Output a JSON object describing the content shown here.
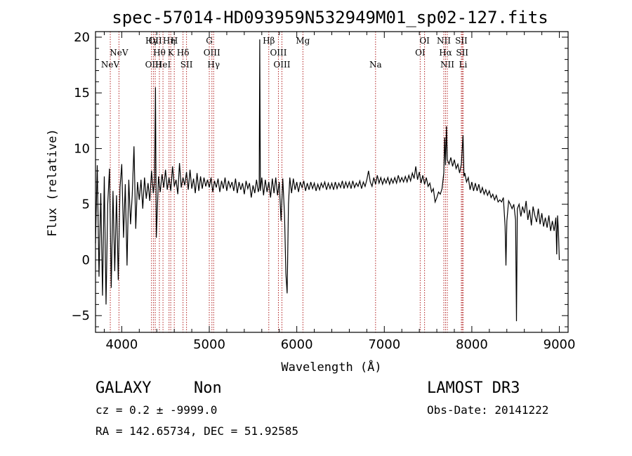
{
  "chart_data": {
    "type": "line",
    "title": "spec-57014-HD093959N532949M01_sp02-127.fits",
    "xlabel": "Wavelength (Å)",
    "ylabel": "Flux (relative)",
    "xlim": [
      3700,
      9100
    ],
    "ylim": [
      -6.5,
      20.5
    ],
    "xticks": [
      4000,
      5000,
      6000,
      7000,
      8000,
      9000
    ],
    "yticks": [
      -5,
      0,
      5,
      10,
      15,
      20
    ],
    "grid": false,
    "series": [
      {
        "color": "#000000",
        "points": [
          [
            3700,
            1.5
          ],
          [
            3720,
            8.5
          ],
          [
            3740,
            -1.5
          ],
          [
            3760,
            6.0
          ],
          [
            3780,
            -3.2
          ],
          [
            3800,
            7.5
          ],
          [
            3820,
            -4.0
          ],
          [
            3840,
            5.0
          ],
          [
            3860,
            8.2
          ],
          [
            3880,
            -2.5
          ],
          [
            3900,
            6.2
          ],
          [
            3920,
            -1.0
          ],
          [
            3940,
            5.8
          ],
          [
            3960,
            -1.8
          ],
          [
            3980,
            6.5
          ],
          [
            4000,
            8.6
          ],
          [
            4020,
            2.0
          ],
          [
            4040,
            6.8
          ],
          [
            4060,
            -0.5
          ],
          [
            4080,
            7.2
          ],
          [
            4100,
            3.2
          ],
          [
            4120,
            5.8
          ],
          [
            4140,
            10.2
          ],
          [
            4160,
            2.8
          ],
          [
            4180,
            7.0
          ],
          [
            4200,
            5.4
          ],
          [
            4220,
            7.2
          ],
          [
            4240,
            4.6
          ],
          [
            4260,
            7.4
          ],
          [
            4280,
            5.5
          ],
          [
            4300,
            6.9
          ],
          [
            4320,
            5.3
          ],
          [
            4340,
            8.0
          ],
          [
            4360,
            6.0
          ],
          [
            4375,
            7.0
          ],
          [
            4385,
            15.5
          ],
          [
            4395,
            2.0
          ],
          [
            4405,
            4.2
          ],
          [
            4420,
            7.5
          ],
          [
            4440,
            6.1
          ],
          [
            4460,
            7.7
          ],
          [
            4480,
            6.5
          ],
          [
            4500,
            8.1
          ],
          [
            4520,
            6.3
          ],
          [
            4540,
            7.4
          ],
          [
            4560,
            6.2
          ],
          [
            4580,
            8.4
          ],
          [
            4600,
            6.6
          ],
          [
            4620,
            7.2
          ],
          [
            4640,
            5.9
          ],
          [
            4660,
            8.7
          ],
          [
            4680,
            6.5
          ],
          [
            4700,
            7.4
          ],
          [
            4720,
            6.7
          ],
          [
            4740,
            7.9
          ],
          [
            4760,
            6.3
          ],
          [
            4780,
            8.1
          ],
          [
            4800,
            6.4
          ],
          [
            4820,
            7.3
          ],
          [
            4840,
            6.0
          ],
          [
            4860,
            7.8
          ],
          [
            4880,
            6.2
          ],
          [
            4900,
            7.5
          ],
          [
            4920,
            6.4
          ],
          [
            4940,
            7.4
          ],
          [
            4960,
            6.6
          ],
          [
            4980,
            7.2
          ],
          [
            5000,
            6.5
          ],
          [
            5020,
            7.4
          ],
          [
            5040,
            6.1
          ],
          [
            5060,
            7.1
          ],
          [
            5080,
            6.5
          ],
          [
            5100,
            7.3
          ],
          [
            5120,
            6.1
          ],
          [
            5140,
            7.1
          ],
          [
            5160,
            6.4
          ],
          [
            5180,
            7.4
          ],
          [
            5200,
            6.2
          ],
          [
            5220,
            7.1
          ],
          [
            5240,
            6.5
          ],
          [
            5260,
            7.0
          ],
          [
            5280,
            6.2
          ],
          [
            5300,
            7.3
          ],
          [
            5320,
            6.0
          ],
          [
            5340,
            7.0
          ],
          [
            5360,
            6.3
          ],
          [
            5380,
            6.9
          ],
          [
            5400,
            5.9
          ],
          [
            5420,
            7.1
          ],
          [
            5440,
            6.4
          ],
          [
            5460,
            6.9
          ],
          [
            5480,
            5.6
          ],
          [
            5500,
            6.7
          ],
          [
            5520,
            6.0
          ],
          [
            5540,
            7.2
          ],
          [
            5560,
            6.1
          ],
          [
            5570,
            6.5
          ],
          [
            5577,
            19.8
          ],
          [
            5584,
            6.2
          ],
          [
            5600,
            7.4
          ],
          [
            5620,
            5.8
          ],
          [
            5640,
            7.2
          ],
          [
            5660,
            6.1
          ],
          [
            5680,
            7.0
          ],
          [
            5700,
            5.6
          ],
          [
            5720,
            7.3
          ],
          [
            5740,
            6.0
          ],
          [
            5760,
            7.4
          ],
          [
            5780,
            5.8
          ],
          [
            5800,
            7.0
          ],
          [
            5820,
            3.5
          ],
          [
            5840,
            7.3
          ],
          [
            5860,
            4.0
          ],
          [
            5875,
            -1.2
          ],
          [
            5890,
            -3.0
          ],
          [
            5905,
            5.0
          ],
          [
            5920,
            7.4
          ],
          [
            5940,
            6.0
          ],
          [
            5960,
            7.3
          ],
          [
            5980,
            6.3
          ],
          [
            6000,
            7.0
          ],
          [
            6020,
            6.1
          ],
          [
            6040,
            7.0
          ],
          [
            6060,
            6.5
          ],
          [
            6080,
            7.1
          ],
          [
            6100,
            6.2
          ],
          [
            6120,
            6.9
          ],
          [
            6140,
            6.3
          ],
          [
            6160,
            7.0
          ],
          [
            6180,
            6.4
          ],
          [
            6200,
            6.9
          ],
          [
            6220,
            6.2
          ],
          [
            6240,
            6.8
          ],
          [
            6260,
            6.3
          ],
          [
            6280,
            6.9
          ],
          [
            6300,
            6.5
          ],
          [
            6320,
            7.0
          ],
          [
            6340,
            6.3
          ],
          [
            6360,
            6.9
          ],
          [
            6380,
            6.4
          ],
          [
            6400,
            6.9
          ],
          [
            6420,
            6.3
          ],
          [
            6440,
            7.0
          ],
          [
            6460,
            6.4
          ],
          [
            6480,
            6.9
          ],
          [
            6500,
            6.5
          ],
          [
            6520,
            7.1
          ],
          [
            6540,
            6.4
          ],
          [
            6560,
            7.0
          ],
          [
            6580,
            6.5
          ],
          [
            6600,
            7.0
          ],
          [
            6620,
            6.4
          ],
          [
            6640,
            7.1
          ],
          [
            6660,
            6.5
          ],
          [
            6680,
            6.9
          ],
          [
            6700,
            6.6
          ],
          [
            6720,
            7.1
          ],
          [
            6740,
            6.4
          ],
          [
            6760,
            7.0
          ],
          [
            6780,
            6.6
          ],
          [
            6800,
            7.2
          ],
          [
            6820,
            8.0
          ],
          [
            6840,
            7.0
          ],
          [
            6860,
            6.6
          ],
          [
            6880,
            7.4
          ],
          [
            6900,
            6.8
          ],
          [
            6920,
            7.6
          ],
          [
            6940,
            6.9
          ],
          [
            6960,
            7.4
          ],
          [
            6980,
            6.8
          ],
          [
            7000,
            7.3
          ],
          [
            7020,
            6.9
          ],
          [
            7040,
            7.4
          ],
          [
            7060,
            6.8
          ],
          [
            7080,
            7.3
          ],
          [
            7100,
            6.9
          ],
          [
            7120,
            7.4
          ],
          [
            7140,
            6.9
          ],
          [
            7160,
            7.6
          ],
          [
            7180,
            7.0
          ],
          [
            7200,
            7.4
          ],
          [
            7220,
            7.0
          ],
          [
            7240,
            7.5
          ],
          [
            7260,
            7.0
          ],
          [
            7280,
            7.6
          ],
          [
            7300,
            7.1
          ],
          [
            7320,
            7.8
          ],
          [
            7340,
            7.3
          ],
          [
            7360,
            8.4
          ],
          [
            7380,
            7.2
          ],
          [
            7400,
            7.9
          ],
          [
            7420,
            6.9
          ],
          [
            7440,
            7.6
          ],
          [
            7460,
            6.8
          ],
          [
            7480,
            7.4
          ],
          [
            7500,
            6.6
          ],
          [
            7520,
            6.9
          ],
          [
            7540,
            6.1
          ],
          [
            7560,
            6.4
          ],
          [
            7580,
            5.2
          ],
          [
            7600,
            5.6
          ],
          [
            7620,
            6.1
          ],
          [
            7640,
            5.9
          ],
          [
            7660,
            6.4
          ],
          [
            7680,
            7.8
          ],
          [
            7690,
            11.0
          ],
          [
            7700,
            8.5
          ],
          [
            7710,
            12.0
          ],
          [
            7720,
            9.0
          ],
          [
            7740,
            8.6
          ],
          [
            7760,
            9.2
          ],
          [
            7780,
            8.4
          ],
          [
            7800,
            9.0
          ],
          [
            7820,
            8.2
          ],
          [
            7840,
            8.6
          ],
          [
            7860,
            7.8
          ],
          [
            7880,
            8.6
          ],
          [
            7900,
            11.2
          ],
          [
            7910,
            7.5
          ],
          [
            7920,
            7.8
          ],
          [
            7940,
            7.0
          ],
          [
            7960,
            7.4
          ],
          [
            7980,
            6.3
          ],
          [
            8000,
            7.0
          ],
          [
            8020,
            6.2
          ],
          [
            8040,
            6.9
          ],
          [
            8060,
            6.2
          ],
          [
            8080,
            6.8
          ],
          [
            8100,
            6.0
          ],
          [
            8120,
            6.5
          ],
          [
            8140,
            5.9
          ],
          [
            8160,
            6.3
          ],
          [
            8180,
            5.8
          ],
          [
            8200,
            6.2
          ],
          [
            8220,
            5.6
          ],
          [
            8240,
            5.9
          ],
          [
            8260,
            5.4
          ],
          [
            8280,
            5.8
          ],
          [
            8300,
            5.2
          ],
          [
            8320,
            5.4
          ],
          [
            8340,
            5.2
          ],
          [
            8360,
            5.6
          ],
          [
            8380,
            3.0
          ],
          [
            8390,
            -0.5
          ],
          [
            8400,
            3.5
          ],
          [
            8420,
            5.3
          ],
          [
            8440,
            5.0
          ],
          [
            8460,
            4.6
          ],
          [
            8480,
            5.0
          ],
          [
            8500,
            3.6
          ],
          [
            8510,
            -5.5
          ],
          [
            8520,
            4.6
          ],
          [
            8540,
            5.0
          ],
          [
            8560,
            3.9
          ],
          [
            8580,
            4.8
          ],
          [
            8600,
            4.2
          ],
          [
            8620,
            5.3
          ],
          [
            8640,
            3.6
          ],
          [
            8660,
            4.5
          ],
          [
            8680,
            3.1
          ],
          [
            8700,
            4.8
          ],
          [
            8720,
            4.0
          ],
          [
            8740,
            3.4
          ],
          [
            8760,
            4.6
          ],
          [
            8780,
            3.2
          ],
          [
            8800,
            4.2
          ],
          [
            8820,
            3.0
          ],
          [
            8840,
            3.8
          ],
          [
            8860,
            2.9
          ],
          [
            8880,
            4.0
          ],
          [
            8900,
            2.6
          ],
          [
            8920,
            3.5
          ],
          [
            8940,
            2.6
          ],
          [
            8960,
            3.8
          ],
          [
            8970,
            0.5
          ],
          [
            8980,
            4.0
          ],
          [
            8990,
            2.5
          ],
          [
            9000,
            0.0
          ]
        ]
      }
    ],
    "line_color": "#b22222",
    "lines": [
      {
        "wavelength": 3869,
        "label": "NeV",
        "row": 2
      },
      {
        "wavelength": 3968,
        "label": "NeV",
        "row": 1
      },
      {
        "wavelength": 4363,
        "label": "OIII",
        "row": 2
      },
      {
        "wavelength": 4383,
        "label": "OII",
        "row": 0
      },
      {
        "wavelength": 4340,
        "label": "Hγ",
        "row": 0
      },
      {
        "wavelength": 4430,
        "label": "Hθ",
        "row": 1
      },
      {
        "wavelength": 4471,
        "label": "HeI",
        "row": 2
      },
      {
        "wavelength": 4540,
        "label": "Hη",
        "row": 0
      },
      {
        "wavelength": 4560,
        "label": "K",
        "row": 1
      },
      {
        "wavelength": 4600,
        "label": "H",
        "row": 0
      },
      {
        "wavelength": 4700,
        "label": "Hδ",
        "row": 1
      },
      {
        "wavelength": 4740,
        "label": "SII",
        "row": 2
      },
      {
        "wavelength": 5000,
        "label": "G",
        "row": 0
      },
      {
        "wavelength": 5030,
        "label": "OIII",
        "row": 1
      },
      {
        "wavelength": 5050,
        "label": "Hγ",
        "row": 2
      },
      {
        "wavelength": 5680,
        "label": "Hβ",
        "row": 0
      },
      {
        "wavelength": 5790,
        "label": "OIII",
        "row": 1
      },
      {
        "wavelength": 5830,
        "label": "OIII",
        "row": 2
      },
      {
        "wavelength": 6070,
        "label": "Mg",
        "row": 0
      },
      {
        "wavelength": 6900,
        "label": "Na",
        "row": 2
      },
      {
        "wavelength": 7410,
        "label": "OI",
        "row": 1
      },
      {
        "wavelength": 7460,
        "label": "OI",
        "row": 0
      },
      {
        "wavelength": 7680,
        "label": "NII",
        "row": 0
      },
      {
        "wavelength": 7700,
        "label": "Hα",
        "row": 1
      },
      {
        "wavelength": 7720,
        "label": "NII",
        "row": 2
      },
      {
        "wavelength": 7880,
        "label": "SII",
        "row": 0
      },
      {
        "wavelength": 7890,
        "label": "SII",
        "row": 1
      },
      {
        "wavelength": 7900,
        "label": "Li",
        "row": 2
      }
    ]
  },
  "footer": {
    "object_class": "GALAXY",
    "subclass": "Non",
    "cz": "cz = 0.2 ± -9999.0",
    "coords": "RA = 142.65734, DEC =  51.92585",
    "survey": "LAMOST DR3",
    "obs_date": "Obs-Date: 20141222"
  }
}
